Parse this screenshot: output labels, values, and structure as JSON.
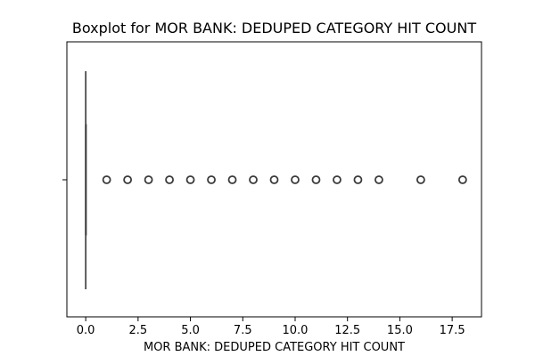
{
  "chart_data": {
    "type": "boxplot",
    "orientation": "horizontal",
    "title": "Boxplot for MOR BANK: DEDUPED CATEGORY HIT COUNT",
    "xlabel": "MOR BANK: DEDUPED CATEGORY HIT COUNT",
    "ylabel": "",
    "xlim": [
      -0.9,
      18.9
    ],
    "xticks": [
      0.0,
      2.5,
      5.0,
      7.5,
      10.0,
      12.5,
      15.0,
      17.5
    ],
    "xtick_labels": [
      "0.0",
      "2.5",
      "5.0",
      "7.5",
      "10.0",
      "12.5",
      "15.0",
      "17.5"
    ],
    "grid": false,
    "box": {
      "min": 0,
      "q1": 0,
      "median": 0,
      "q3": 0,
      "max": 0
    },
    "outliers": [
      1,
      2,
      3,
      4,
      5,
      6,
      7,
      8,
      9,
      10,
      11,
      12,
      13,
      14,
      16,
      18
    ]
  }
}
